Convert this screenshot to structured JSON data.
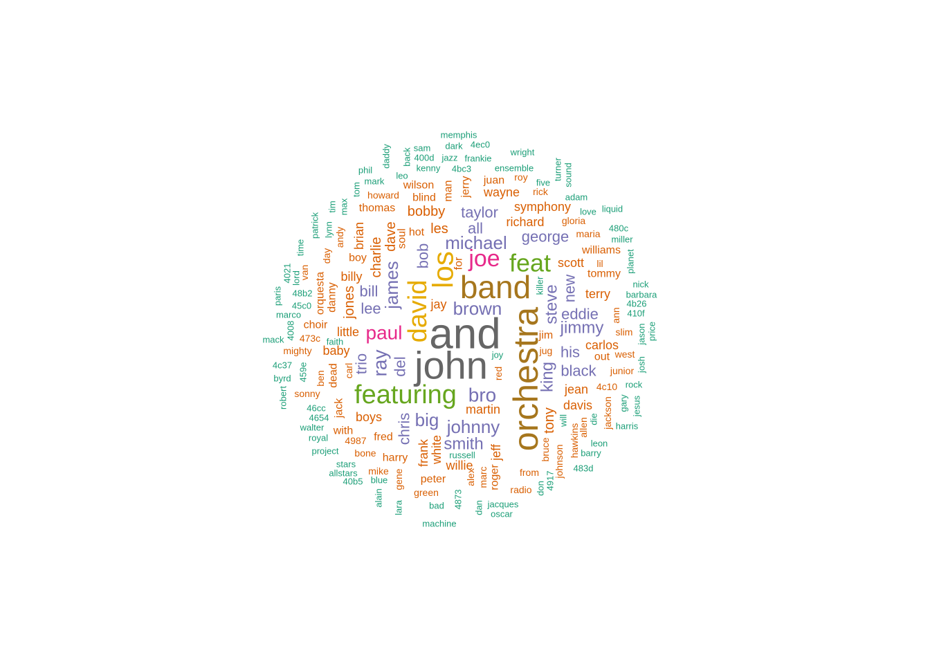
{
  "palette": {
    "teal": "#1b9e77",
    "orange": "#d95f02",
    "purple": "#7570b3",
    "magenta": "#e7298a",
    "green": "#66a61e",
    "gold": "#e6ab02",
    "brown": "#a6761d",
    "gray": "#666666"
  },
  "words": [
    {
      "text": "and",
      "color": "gray",
      "weight": 10
    },
    {
      "text": "john",
      "color": "gray",
      "weight": 10
    },
    {
      "text": "orchestra",
      "color": "brown",
      "weight": 9
    },
    {
      "text": "band",
      "color": "brown",
      "weight": 8
    },
    {
      "text": "featuring",
      "color": "green",
      "weight": 7
    },
    {
      "text": "los",
      "color": "gold",
      "weight": 7
    },
    {
      "text": "david",
      "color": "gold",
      "weight": 7
    },
    {
      "text": "feat",
      "color": "green",
      "weight": 6
    },
    {
      "text": "joe",
      "color": "magenta",
      "weight": 6
    },
    {
      "text": "paul",
      "color": "magenta",
      "weight": 5
    },
    {
      "text": "michael",
      "color": "purple",
      "weight": 5
    },
    {
      "text": "bro",
      "color": "purple",
      "weight": 5
    },
    {
      "text": "james",
      "color": "purple",
      "weight": 5
    },
    {
      "text": "ray",
      "color": "purple",
      "weight": 5
    },
    {
      "text": "johnny",
      "color": "purple",
      "weight": 5
    },
    {
      "text": "brown",
      "color": "purple",
      "weight": 5
    },
    {
      "text": "steve",
      "color": "purple",
      "weight": 5
    },
    {
      "text": "big",
      "color": "purple",
      "weight": 5
    },
    {
      "text": "king",
      "color": "purple",
      "weight": 4
    },
    {
      "text": "smith",
      "color": "purple",
      "weight": 4
    },
    {
      "text": "jimmy",
      "color": "purple",
      "weight": 4
    },
    {
      "text": "eddie",
      "color": "purple",
      "weight": 4
    },
    {
      "text": "george",
      "color": "purple",
      "weight": 4
    },
    {
      "text": "taylor",
      "color": "purple",
      "weight": 4
    },
    {
      "text": "black",
      "color": "purple",
      "weight": 4
    },
    {
      "text": "his",
      "color": "purple",
      "weight": 4
    },
    {
      "text": "all",
      "color": "purple",
      "weight": 4
    },
    {
      "text": "bob",
      "color": "purple",
      "weight": 4
    },
    {
      "text": "bill",
      "color": "purple",
      "weight": 4
    },
    {
      "text": "lee",
      "color": "purple",
      "weight": 4
    },
    {
      "text": "chris",
      "color": "purple",
      "weight": 4
    },
    {
      "text": "new",
      "color": "purple",
      "weight": 4
    },
    {
      "text": "trio",
      "color": "purple",
      "weight": 4
    },
    {
      "text": "del",
      "color": "purple",
      "weight": 4
    },
    {
      "text": "charlie",
      "color": "orange",
      "weight": 3
    },
    {
      "text": "dave",
      "color": "orange",
      "weight": 3
    },
    {
      "text": "les",
      "color": "orange",
      "weight": 3
    },
    {
      "text": "jones",
      "color": "orange",
      "weight": 3
    },
    {
      "text": "richard",
      "color": "orange",
      "weight": 3
    },
    {
      "text": "scott",
      "color": "orange",
      "weight": 3
    },
    {
      "text": "carlos",
      "color": "orange",
      "weight": 3
    },
    {
      "text": "tony",
      "color": "orange",
      "weight": 3
    },
    {
      "text": "martin",
      "color": "orange",
      "weight": 3
    },
    {
      "text": "davis",
      "color": "orange",
      "weight": 3
    },
    {
      "text": "jean",
      "color": "orange",
      "weight": 3
    },
    {
      "text": "bobby",
      "color": "orange",
      "weight": 3
    },
    {
      "text": "wayne",
      "color": "orange",
      "weight": 3
    },
    {
      "text": "symphony",
      "color": "orange",
      "weight": 3
    },
    {
      "text": "boys",
      "color": "orange",
      "weight": 3
    },
    {
      "text": "willie",
      "color": "orange",
      "weight": 3
    },
    {
      "text": "little",
      "color": "orange",
      "weight": 3
    },
    {
      "text": "baby",
      "color": "orange",
      "weight": 3
    },
    {
      "text": "billy",
      "color": "orange",
      "weight": 3
    },
    {
      "text": "jay",
      "color": "orange",
      "weight": 3
    },
    {
      "text": "brian",
      "color": "orange",
      "weight": 3
    },
    {
      "text": "thomas",
      "color": "orange",
      "weight": 3
    },
    {
      "text": "wilson",
      "color": "orange",
      "weight": 3
    },
    {
      "text": "terry",
      "color": "orange",
      "weight": 3
    },
    {
      "text": "tommy",
      "color": "orange",
      "weight": 3
    },
    {
      "text": "williams",
      "color": "orange",
      "weight": 3
    },
    {
      "text": "harry",
      "color": "orange",
      "weight": 3
    },
    {
      "text": "frank",
      "color": "orange",
      "weight": 3
    },
    {
      "text": "white",
      "color": "orange",
      "weight": 3
    },
    {
      "text": "jeff",
      "color": "orange",
      "weight": 3
    },
    {
      "text": "fred",
      "color": "orange",
      "weight": 3
    },
    {
      "text": "soul",
      "color": "orange",
      "weight": 3
    },
    {
      "text": "boy",
      "color": "orange",
      "weight": 3
    },
    {
      "text": "hot",
      "color": "orange",
      "weight": 2
    },
    {
      "text": "man",
      "color": "orange",
      "weight": 2
    },
    {
      "text": "juan",
      "color": "orange",
      "weight": 2
    },
    {
      "text": "jim",
      "color": "orange",
      "weight": 2
    },
    {
      "text": "peter",
      "color": "orange",
      "weight": 2
    },
    {
      "text": "out",
      "color": "orange",
      "weight": 2
    },
    {
      "text": "west",
      "color": "orange",
      "weight": 2
    },
    {
      "text": "junior",
      "color": "orange",
      "weight": 2
    },
    {
      "text": "jerry",
      "color": "orange",
      "weight": 2
    },
    {
      "text": "blind",
      "color": "orange",
      "weight": 2
    },
    {
      "text": "howard",
      "color": "orange",
      "weight": 2
    },
    {
      "text": "danny",
      "color": "orange",
      "weight": 2
    },
    {
      "text": "orquesta",
      "color": "orange",
      "weight": 2
    },
    {
      "text": "choir",
      "color": "orange",
      "weight": 2
    },
    {
      "text": "473c",
      "color": "orange",
      "weight": 2
    },
    {
      "text": "mighty",
      "color": "orange",
      "weight": 2
    },
    {
      "text": "dead",
      "color": "orange",
      "weight": 2
    },
    {
      "text": "jack",
      "color": "orange",
      "weight": 2
    },
    {
      "text": "with",
      "color": "orange",
      "weight": 2
    },
    {
      "text": "4987",
      "color": "orange",
      "weight": 2
    },
    {
      "text": "bone",
      "color": "orange",
      "weight": 2
    },
    {
      "text": "mike",
      "color": "orange",
      "weight": 2
    },
    {
      "text": "gene",
      "color": "orange",
      "weight": 2
    },
    {
      "text": "green",
      "color": "orange",
      "weight": 2
    },
    {
      "text": "marc",
      "color": "orange",
      "weight": 2
    },
    {
      "text": "roger",
      "color": "orange",
      "weight": 2
    },
    {
      "text": "alex",
      "color": "orange",
      "weight": 2
    },
    {
      "text": "radio",
      "color": "orange",
      "weight": 2
    },
    {
      "text": "from",
      "color": "orange",
      "weight": 2
    },
    {
      "text": "bruce",
      "color": "orange",
      "weight": 2
    },
    {
      "text": "johnson",
      "color": "orange",
      "weight": 2
    },
    {
      "text": "hawkins",
      "color": "orange",
      "weight": 2
    },
    {
      "text": "allen",
      "color": "orange",
      "weight": 2
    },
    {
      "text": "jackson",
      "color": "orange",
      "weight": 2
    },
    {
      "text": "4c10",
      "color": "orange",
      "weight": 2
    },
    {
      "text": "slim",
      "color": "orange",
      "weight": 2
    },
    {
      "text": "ann",
      "color": "orange",
      "weight": 2
    },
    {
      "text": "maria",
      "color": "orange",
      "weight": 2
    },
    {
      "text": "gloria",
      "color": "orange",
      "weight": 2
    },
    {
      "text": "lil",
      "color": "orange",
      "weight": 2
    },
    {
      "text": "rick",
      "color": "orange",
      "weight": 2
    },
    {
      "text": "roy",
      "color": "orange",
      "weight": 2
    },
    {
      "text": "red",
      "color": "orange",
      "weight": 2
    },
    {
      "text": "jug",
      "color": "orange",
      "weight": 2
    },
    {
      "text": "for",
      "color": "orange",
      "weight": 2
    },
    {
      "text": "andy",
      "color": "orange",
      "weight": 2
    },
    {
      "text": "day",
      "color": "orange",
      "weight": 2
    },
    {
      "text": "van",
      "color": "orange",
      "weight": 2
    },
    {
      "text": "sonny",
      "color": "orange",
      "weight": 2
    },
    {
      "text": "ben",
      "color": "orange",
      "weight": 2
    },
    {
      "text": "carl",
      "color": "orange",
      "weight": 2
    },
    {
      "text": "memphis",
      "color": "teal",
      "weight": 1
    },
    {
      "text": "dark",
      "color": "teal",
      "weight": 1
    },
    {
      "text": "4ec0",
      "color": "teal",
      "weight": 1
    },
    {
      "text": "sam",
      "color": "teal",
      "weight": 1
    },
    {
      "text": "wright",
      "color": "teal",
      "weight": 1
    },
    {
      "text": "400d",
      "color": "teal",
      "weight": 1
    },
    {
      "text": "jazz",
      "color": "teal",
      "weight": 1
    },
    {
      "text": "frankie",
      "color": "teal",
      "weight": 1
    },
    {
      "text": "daddy",
      "color": "teal",
      "weight": 1
    },
    {
      "text": "back",
      "color": "teal",
      "weight": 1
    },
    {
      "text": "kenny",
      "color": "teal",
      "weight": 1
    },
    {
      "text": "4bc3",
      "color": "teal",
      "weight": 1
    },
    {
      "text": "ensemble",
      "color": "teal",
      "weight": 1
    },
    {
      "text": "phil",
      "color": "teal",
      "weight": 1
    },
    {
      "text": "leo",
      "color": "teal",
      "weight": 1
    },
    {
      "text": "mark",
      "color": "teal",
      "weight": 1
    },
    {
      "text": "turner",
      "color": "teal",
      "weight": 1
    },
    {
      "text": "sound",
      "color": "teal",
      "weight": 1
    },
    {
      "text": "five",
      "color": "teal",
      "weight": 1
    },
    {
      "text": "tom",
      "color": "teal",
      "weight": 1
    },
    {
      "text": "adam",
      "color": "teal",
      "weight": 1
    },
    {
      "text": "love",
      "color": "teal",
      "weight": 1
    },
    {
      "text": "liquid",
      "color": "teal",
      "weight": 1
    },
    {
      "text": "max",
      "color": "teal",
      "weight": 1
    },
    {
      "text": "tim",
      "color": "teal",
      "weight": 1
    },
    {
      "text": "lynn",
      "color": "teal",
      "weight": 1
    },
    {
      "text": "patrick",
      "color": "teal",
      "weight": 1
    },
    {
      "text": "480c",
      "color": "teal",
      "weight": 1
    },
    {
      "text": "miller",
      "color": "teal",
      "weight": 1
    },
    {
      "text": "time",
      "color": "teal",
      "weight": 1
    },
    {
      "text": "planet",
      "color": "teal",
      "weight": 1
    },
    {
      "text": "4021",
      "color": "teal",
      "weight": 1
    },
    {
      "text": "lord",
      "color": "teal",
      "weight": 1
    },
    {
      "text": "nick",
      "color": "teal",
      "weight": 1
    },
    {
      "text": "paris",
      "color": "teal",
      "weight": 1
    },
    {
      "text": "48b2",
      "color": "teal",
      "weight": 1
    },
    {
      "text": "barbara",
      "color": "teal",
      "weight": 1
    },
    {
      "text": "killer",
      "color": "teal",
      "weight": 1
    },
    {
      "text": "45c0",
      "color": "teal",
      "weight": 1
    },
    {
      "text": "4b26",
      "color": "teal",
      "weight": 1
    },
    {
      "text": "marco",
      "color": "teal",
      "weight": 1
    },
    {
      "text": "410f",
      "color": "teal",
      "weight": 1
    },
    {
      "text": "4008",
      "color": "teal",
      "weight": 1
    },
    {
      "text": "price",
      "color": "teal",
      "weight": 1
    },
    {
      "text": "jason",
      "color": "teal",
      "weight": 1
    },
    {
      "text": "mack",
      "color": "teal",
      "weight": 1
    },
    {
      "text": "faith",
      "color": "teal",
      "weight": 1
    },
    {
      "text": "joy",
      "color": "teal",
      "weight": 1
    },
    {
      "text": "4c37",
      "color": "teal",
      "weight": 1
    },
    {
      "text": "459e",
      "color": "teal",
      "weight": 1
    },
    {
      "text": "josh",
      "color": "teal",
      "weight": 1
    },
    {
      "text": "byrd",
      "color": "teal",
      "weight": 1
    },
    {
      "text": "rock",
      "color": "teal",
      "weight": 1
    },
    {
      "text": "robert",
      "color": "teal",
      "weight": 1
    },
    {
      "text": "gary",
      "color": "teal",
      "weight": 1
    },
    {
      "text": "jesus",
      "color": "teal",
      "weight": 1
    },
    {
      "text": "46cc",
      "color": "teal",
      "weight": 1
    },
    {
      "text": "4654",
      "color": "teal",
      "weight": 1
    },
    {
      "text": "will",
      "color": "teal",
      "weight": 1
    },
    {
      "text": "die",
      "color": "teal",
      "weight": 1
    },
    {
      "text": "harris",
      "color": "teal",
      "weight": 1
    },
    {
      "text": "walter",
      "color": "teal",
      "weight": 1
    },
    {
      "text": "royal",
      "color": "teal",
      "weight": 1
    },
    {
      "text": "leon",
      "color": "teal",
      "weight": 1
    },
    {
      "text": "project",
      "color": "teal",
      "weight": 1
    },
    {
      "text": "russell",
      "color": "teal",
      "weight": 1
    },
    {
      "text": "barry",
      "color": "teal",
      "weight": 1
    },
    {
      "text": "stars",
      "color": "teal",
      "weight": 1
    },
    {
      "text": "allstars",
      "color": "teal",
      "weight": 1
    },
    {
      "text": "483d",
      "color": "teal",
      "weight": 1
    },
    {
      "text": "40b5",
      "color": "teal",
      "weight": 1
    },
    {
      "text": "blue",
      "color": "teal",
      "weight": 1
    },
    {
      "text": "4917",
      "color": "teal",
      "weight": 1
    },
    {
      "text": "don",
      "color": "teal",
      "weight": 1
    },
    {
      "text": "alain",
      "color": "teal",
      "weight": 1
    },
    {
      "text": "lara",
      "color": "teal",
      "weight": 1
    },
    {
      "text": "4873",
      "color": "teal",
      "weight": 1
    },
    {
      "text": "bad",
      "color": "teal",
      "weight": 1
    },
    {
      "text": "dan",
      "color": "teal",
      "weight": 1
    },
    {
      "text": "jacques",
      "color": "teal",
      "weight": 1
    },
    {
      "text": "oscar",
      "color": "teal",
      "weight": 1
    },
    {
      "text": "machine",
      "color": "teal",
      "weight": 1
    }
  ]
}
